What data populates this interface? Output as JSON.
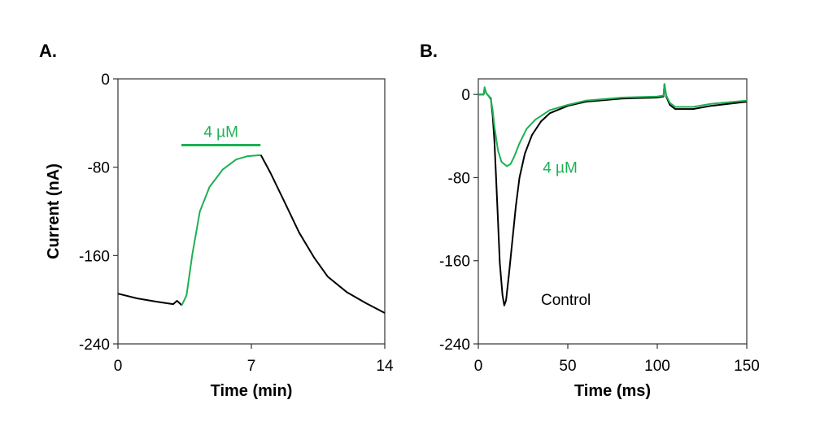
{
  "colors": {
    "control": "#000000",
    "treated": "#1db054",
    "axis": "#333333"
  },
  "chart_data": [
    {
      "panel_label": "A.",
      "type": "line",
      "xlabel": "Time (min)",
      "ylabel": "Current (nA)",
      "xlim": [
        0,
        14
      ],
      "ylim": [
        -240,
        0
      ],
      "xticks": [
        "0",
        "7",
        "14"
      ],
      "yticks": [
        "0",
        "-80",
        "-160",
        "-240"
      ],
      "xtick_values": [
        0,
        7,
        14
      ],
      "ytick_values": [
        0,
        -80,
        -160,
        -240
      ],
      "grid": false,
      "annotations": [
        {
          "text": "4 µM",
          "bar_x": [
            3.33,
            7.48
          ],
          "bar_y": -60,
          "color": "treated"
        }
      ],
      "series": [
        {
          "color": "control",
          "points": [
            [
              0,
              -194.5
            ],
            [
              1,
              -198.8
            ],
            [
              2,
              -201.7
            ],
            [
              2.9,
              -204
            ],
            [
              3.1,
              -201
            ],
            [
              3.35,
              -205
            ]
          ]
        },
        {
          "color": "treated",
          "points": [
            [
              3.35,
              -205
            ],
            [
              3.6,
              -196
            ],
            [
              3.9,
              -159
            ],
            [
              4.3,
              -120
            ],
            [
              4.8,
              -98
            ],
            [
              5.5,
              -82
            ],
            [
              6.2,
              -73
            ],
            [
              6.8,
              -70
            ],
            [
              7.5,
              -69
            ]
          ]
        },
        {
          "color": "control",
          "points": [
            [
              7.5,
              -69
            ],
            [
              8,
              -85
            ],
            [
              8.7,
              -110
            ],
            [
              9.5,
              -139
            ],
            [
              10.3,
              -162
            ],
            [
              11,
              -179
            ],
            [
              12,
              -193
            ],
            [
              13,
              -203
            ],
            [
              14,
              -212
            ]
          ]
        }
      ]
    },
    {
      "panel_label": "B.",
      "type": "line",
      "xlabel": "Time (ms)",
      "ylabel": "",
      "xlim": [
        0,
        150
      ],
      "ylim": [
        -240,
        15
      ],
      "xticks": [
        "0",
        "50",
        "100",
        "150"
      ],
      "yticks": [
        "0",
        "-80",
        "-160",
        "-240"
      ],
      "xtick_values": [
        0,
        50,
        100,
        150
      ],
      "ytick_values": [
        0,
        -80,
        -160,
        -240
      ],
      "grid": false,
      "annotations": [
        {
          "text": "4 µM",
          "x": 36,
          "y": -70,
          "color": "treated"
        },
        {
          "text": "Control",
          "x": 35,
          "y": -197,
          "color": "control"
        }
      ],
      "series": [
        {
          "name": "Control",
          "color": "control",
          "points": [
            [
              0,
              0
            ],
            [
              3,
              0
            ],
            [
              3.5,
              6
            ],
            [
              4.5,
              1
            ],
            [
              6,
              -2
            ],
            [
              7,
              -4
            ],
            [
              8,
              -20
            ],
            [
              9,
              -45
            ],
            [
              10,
              -83
            ],
            [
              11,
              -122
            ],
            [
              12,
              -162
            ],
            [
              13.5,
              -193
            ],
            [
              14.5,
              -203
            ],
            [
              15.5,
              -198
            ],
            [
              17,
              -175
            ],
            [
              19,
              -141
            ],
            [
              21,
              -107
            ],
            [
              23,
              -80
            ],
            [
              26,
              -57
            ],
            [
              30,
              -39
            ],
            [
              35,
              -26
            ],
            [
              40,
              -18
            ],
            [
              50,
              -11
            ],
            [
              60,
              -7
            ],
            [
              80,
              -4
            ],
            [
              100,
              -3
            ],
            [
              103.5,
              -2
            ],
            [
              104,
              10
            ],
            [
              105,
              -2
            ],
            [
              107,
              -10
            ],
            [
              110,
              -14
            ],
            [
              120,
              -14
            ],
            [
              130,
              -11
            ],
            [
              150,
              -7
            ]
          ]
        },
        {
          "name": "4 µM",
          "color": "treated",
          "points": [
            [
              0,
              0
            ],
            [
              3,
              0
            ],
            [
              3.5,
              7
            ],
            [
              4.5,
              1
            ],
            [
              6,
              -2
            ],
            [
              7,
              -5
            ],
            [
              8,
              -15
            ],
            [
              9,
              -31
            ],
            [
              11,
              -54
            ],
            [
              13,
              -65
            ],
            [
              16,
              -69
            ],
            [
              18,
              -67
            ],
            [
              20,
              -60
            ],
            [
              23,
              -47
            ],
            [
              27,
              -33
            ],
            [
              32,
              -24
            ],
            [
              40,
              -15
            ],
            [
              50,
              -10
            ],
            [
              60,
              -6
            ],
            [
              80,
              -3
            ],
            [
              100,
              -2
            ],
            [
              103.5,
              -1
            ],
            [
              104,
              10
            ],
            [
              105,
              -1
            ],
            [
              107,
              -8
            ],
            [
              110,
              -12
            ],
            [
              120,
              -12
            ],
            [
              130,
              -9
            ],
            [
              150,
              -6
            ]
          ]
        }
      ]
    }
  ]
}
